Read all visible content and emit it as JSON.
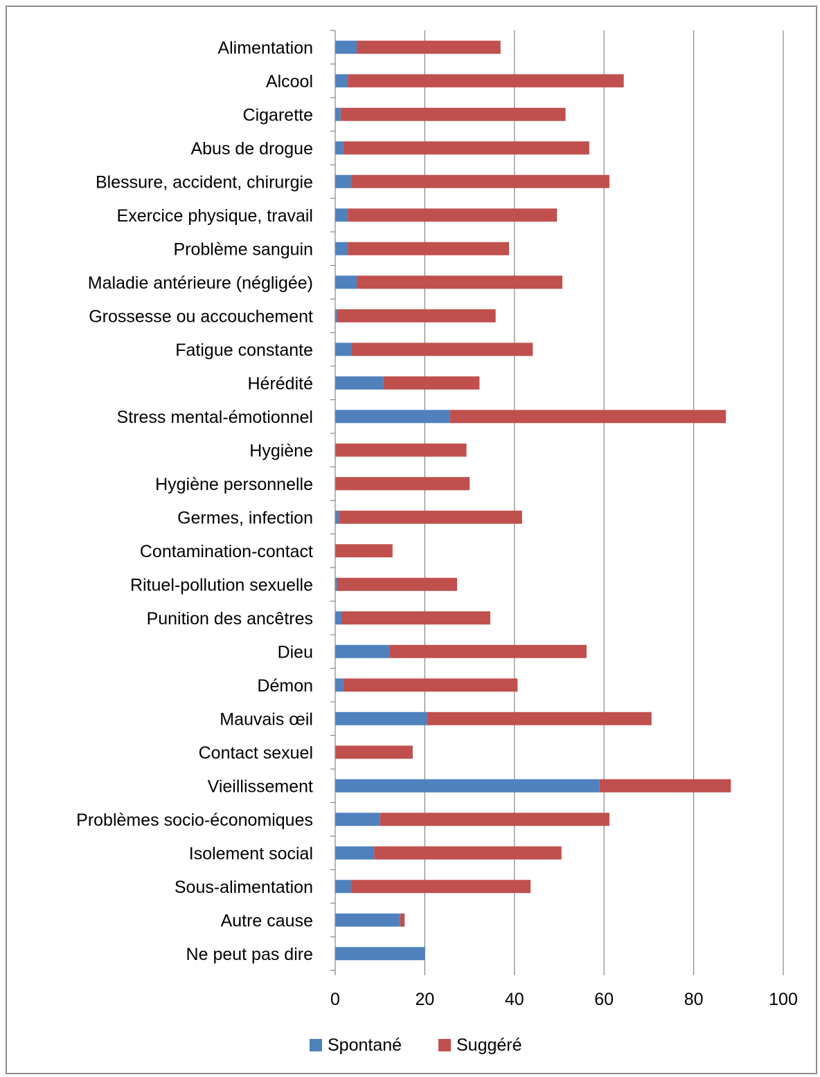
{
  "chart_data": {
    "type": "bar",
    "orientation": "horizontal",
    "stacked": true,
    "categories": [
      "Alimentation",
      "Alcool",
      "Cigarette",
      "Abus de drogue",
      "Blessure, accident, chirurgie",
      "Exercice physique, travail",
      "Problème sanguin",
      "Maladie antérieure (négligée)",
      "Grossesse ou accouchement",
      "Fatigue constante",
      "Hérédité",
      "Stress mental-émotionnel",
      "Hygiène",
      "Hygiène personnelle",
      "Germes, infection",
      "Contamination-contact",
      "Rituel-pollution sexuelle",
      "Punition des ancêtres",
      "Dieu",
      "Démon",
      "Mauvais œil",
      "Contact sexuel",
      "Vieillissement",
      "Problèmes socio-économiques",
      "Isolement social",
      "Sous-alimentation",
      "Autre cause",
      "Ne peut pas dire"
    ],
    "series": [
      {
        "name": "Spontané",
        "color": "#4f81bd",
        "values": [
          4.8,
          2.8,
          1.2,
          1.8,
          3.5,
          2.8,
          2.8,
          4.8,
          0.4,
          3.7,
          10.7,
          25.6,
          0,
          0,
          0.8,
          0,
          0.4,
          1.4,
          12.2,
          1.8,
          20.5,
          0,
          59,
          10,
          8.7,
          3.5,
          14.5,
          20
        ]
      },
      {
        "name": "Suggéré",
        "color": "#c0504d",
        "values": [
          32.1,
          61.6,
          50.2,
          54.9,
          57.7,
          46.7,
          36,
          45.9,
          35.4,
          40.4,
          21.5,
          61.6,
          29.3,
          30,
          40.9,
          12.8,
          26.8,
          33.2,
          43.9,
          38.9,
          50.1,
          17.3,
          29.3,
          51.2,
          41.8,
          40.1,
          1.0,
          0
        ]
      }
    ],
    "xlim": [
      0,
      100
    ],
    "xticks": [
      "0",
      "20",
      "40",
      "60",
      "80",
      "100"
    ],
    "xlabel": "",
    "ylabel": "",
    "title": "",
    "grid": "vertical",
    "legend_position": "bottom"
  }
}
